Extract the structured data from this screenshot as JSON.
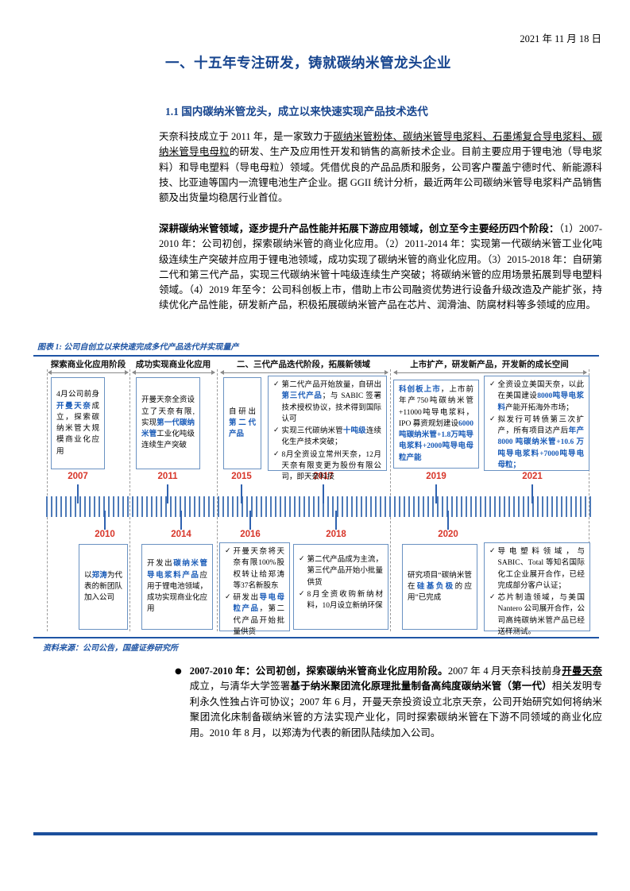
{
  "colors": {
    "heading_blue": "#17458f",
    "figure_blue": "#1f55a5",
    "blue": "#1b5cb8",
    "year_red": "#d8362a",
    "tick_blue": "#4d7ab8",
    "footer_blue": "#1b4f9c"
  },
  "page": {
    "date": "2021 年 11 月 18 日"
  },
  "headings": {
    "h1": "一、十五年专注研发，铸就碳纳米管龙头企业",
    "h2": "1.1 国内碳纳米管龙头，成立以来快速实现产品技术迭代"
  },
  "paragraphs": {
    "p1": [
      {
        "t": "天奈科技成立于 2011 年，是一家致力于"
      },
      {
        "t": "碳纳米管粉体、碳纳米管导电浆料、石墨烯复合导电浆料、碳纳米管导电母粒",
        "u": true
      },
      {
        "t": "的研发、生产及应用性开发和销售的高新技术企业。目前主要应用于锂电池（导电浆料）和导电塑料（导电母粒）领域。凭借优良的产品品质和服务，公司客户覆盖宁德时代、新能源科技、比亚迪等国内一流锂电池生产企业。据 GGII 统计分析，最近两年公司碳纳米管导电浆料产品销售额及出货量均稳居行业首位。"
      }
    ],
    "p2": [
      {
        "t": "深耕碳纳米管领域，逐步提升产品性能并拓展下游应用领域，创立至今主要经历四个阶段：",
        "b": true
      },
      {
        "t": "（1）2007-2010 年：公司初创，探索碳纳米管的商业化应用。（2）2011-2014 年：实现第一代碳纳米管工业化吨级连续生产突破并应用于锂电池领域，成功实现了碳纳米管的商业化应用。（3）2015-2018 年：自研第二代和第三代产品，实现三代碳纳米管十吨级连续生产突破；将碳纳米管的应用场景拓展到导电塑料领域。（4）2019 年至今：公司科创板上市，借助上市公司融资优势进行设备升级改造及产能扩张，持续优化产品性能，研发新产品，积极拓展碳纳米管产品在芯片、润滑油、防腐材料等多领域的应用。"
      }
    ]
  },
  "figure": {
    "caption": "图表 1: 公司自创立以来快速完成多代产品迭代并实现量产",
    "source": "资料来源：公司公告，国盛证券研究所",
    "check": "✓",
    "phases": [
      "探索商业化应用阶段",
      "成功实现商业化应用",
      "二、三代产品迭代阶段，拓展新领域",
      "上市扩产，研发新产品，开发新的成长空间"
    ],
    "years_top": [
      "2007",
      "2011",
      "2015",
      "2017",
      "2019",
      "2021"
    ],
    "years_bottom": [
      "2010",
      "2014",
      "2016",
      "2018",
      "2020"
    ],
    "boxes": {
      "y2007": [
        {
          "t": "4月公司前身"
        },
        {
          "t": "开曼天奈",
          "b": true,
          "c": "blue"
        },
        {
          "t": "成立，探索碳纳米管大规模商业化应用"
        }
      ],
      "y2011": [
        {
          "t": "开曼天奈全资设立了天奈有限,实现"
        },
        {
          "t": "第一代碳纳米管",
          "b": true,
          "c": "blue"
        },
        {
          "t": "工业化吨级连续生产突破"
        }
      ],
      "y2015": [
        {
          "t": "自研出"
        },
        {
          "t": "第二代产品",
          "b": true,
          "c": "blue"
        }
      ],
      "y2017": {
        "items": [
          [
            {
              "t": "第二代产品开始放量，自研出"
            },
            {
              "t": "第三代产品",
              "b": true,
              "c": "blue"
            },
            {
              "t": "；与 SABIC 签署技术授权协议，技术得到国际认可"
            }
          ],
          [
            {
              "t": "实现三代碳纳米管"
            },
            {
              "t": "十吨级",
              "b": true,
              "c": "blue"
            },
            {
              "t": "连续化生产技术突破；"
            }
          ],
          [
            {
              "t": "8月全资设立常州天奈，12月天奈有限变更为股份有限公司，即天奈科技"
            }
          ]
        ]
      },
      "y2019": [
        {
          "t": "科创板上市",
          "b": true,
          "c": "blue"
        },
        {
          "t": "，上市前年产750吨碳纳米管+11000吨导电浆料，IPO 募资规划建设"
        },
        {
          "t": "6000吨碳纳米管+1.8万吨导电浆料+2000吨导电母粒产能",
          "b": true,
          "c": "blue"
        }
      ],
      "y2021": {
        "items": [
          [
            {
              "t": "全资设立美国天奈，以此在美国建设"
            },
            {
              "t": "8000吨导电浆料",
              "b": true,
              "c": "blue"
            },
            {
              "t": "产能开拓海外市场；"
            }
          ],
          [
            {
              "t": "拟发行可转债第三次扩产，所有项目达产后"
            },
            {
              "t": "年产 8000 吨碳纳米管+10.6 万吨导电浆料+7000吨导电母粒；",
              "b": true,
              "c": "blue"
            }
          ]
        ]
      },
      "y2010": [
        {
          "t": "以"
        },
        {
          "t": "郑涛",
          "b": true,
          "c": "blue"
        },
        {
          "t": "为代表的新团队加入公司"
        }
      ],
      "y2014": [
        {
          "t": "开发出"
        },
        {
          "t": "碳纳米管导电浆料产品",
          "b": true,
          "c": "blue"
        },
        {
          "t": "应用于锂电池领域，成功实现商业化应用"
        }
      ],
      "y2016": {
        "items": [
          [
            {
              "t": "开曼天奈将天奈有限100%股权转让给郑涛等37名新股东"
            }
          ],
          [
            {
              "t": "研发出"
            },
            {
              "t": "导电母粒产品",
              "b": true,
              "c": "blue"
            },
            {
              "t": "，第二代产品开始批量供货"
            }
          ]
        ]
      },
      "y2018": {
        "items": [
          [
            {
              "t": "第二代产品成为主流，第三代产品开始小批量供货"
            }
          ],
          [
            {
              "t": "8月全资收购新纳材料，10月设立新纳环保"
            }
          ]
        ]
      },
      "y2020": [
        {
          "t": "研究项目“碳纳米管在"
        },
        {
          "t": "硅基负极",
          "b": true,
          "c": "blue"
        },
        {
          "t": "的应用”已完成"
        }
      ],
      "yfinal": {
        "items": [
          [
            {
              "t": "导电塑料领域，与 SABIC、Total 等知名国际化工企业展开合作，已经完成部分客户认证；"
            }
          ],
          [
            {
              "t": "芯片制造领域，与美国 Nantero 公司展开合作，公司高纯碳纳米管产品已经送样测试。"
            }
          ]
        ]
      }
    }
  },
  "bullet": {
    "marker": "●",
    "segments": [
      {
        "t": "2007-2010 年：公司初创，探索碳纳米管商业化应用阶段。",
        "b": true
      },
      {
        "t": "2007 年 4 月天奈科技前身"
      },
      {
        "t": "开曼天奈",
        "b": true,
        "u": true
      },
      {
        "t": "成立，与清华大学签署"
      },
      {
        "t": "基于纳米聚团流化原理批量制备高纯度碳纳米管（第一代）",
        "b": true
      },
      {
        "t": "相关发明专利永久性独占许可协议；2007 年 6 月，开曼天奈投资设立北京天奈，公司开始研究如何将纳米聚团流化床制备碳纳米管的方法实现产业化，同时探索碳纳米管在下游不同领域的商业化应用。2010 年 8 月，以郑涛为代表的新团队陆续加入公司。"
      }
    ]
  }
}
